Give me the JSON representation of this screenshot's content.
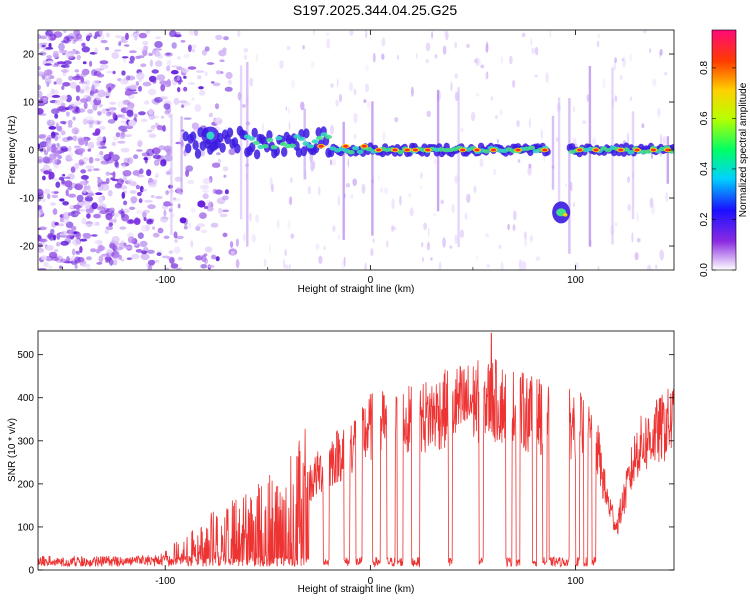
{
  "title": "S197.2025.344.04.25.G25",
  "colors": {
    "snr_line": "#ee3333",
    "axis": "#000000",
    "track_high": "#ff2a2a",
    "track_mid": "#33d6c4",
    "track_low": "#3a1ae0",
    "noise": "#9b5ce6"
  },
  "chart_data": [
    {
      "type": "heatmap",
      "title": "S197.2025.344.04.25.G25",
      "xlabel": "Height of straight line (km)",
      "ylabel": "Frequency (Hz)",
      "xlim": [
        -162,
        148
      ],
      "ylim": [
        -25,
        25
      ],
      "xticks": [
        -100,
        0,
        100
      ],
      "yticks": [
        -20,
        -10,
        0,
        10,
        20
      ],
      "colorbar": {
        "label": "Normalized spectral amplitude",
        "range": [
          0.0,
          0.95
        ],
        "ticks": [
          0.0,
          0.2,
          0.4,
          0.6,
          0.8
        ]
      },
      "features": [
        {
          "name": "main-track",
          "x_start": -70,
          "x_end": 148,
          "freq": 0
        },
        {
          "name": "secondary-blob",
          "x": 93,
          "freq": -13
        },
        {
          "name": "left-blob",
          "x": -78,
          "freq": 3
        }
      ]
    },
    {
      "type": "line",
      "title": "",
      "xlabel": "Height of straight line (km)",
      "ylabel": "SNR (10 * v/v)",
      "xlim": [
        -162,
        148
      ],
      "ylim": [
        0,
        555
      ],
      "xticks": [
        -100,
        0,
        100
      ],
      "yticks": [
        0,
        100,
        200,
        300,
        400,
        500
      ],
      "series": [
        {
          "name": "SNR",
          "envelope_x": [
            -162,
            -120,
            -100,
            -90,
            -80,
            -70,
            -60,
            -50,
            -40,
            -30,
            -20,
            -10,
            0,
            10,
            20,
            30,
            40,
            50,
            60,
            70,
            80,
            90,
            100,
            110,
            115,
            120,
            130,
            140,
            148
          ],
          "envelope_y": [
            18,
            20,
            30,
            45,
            75,
            95,
            110,
            135,
            165,
            200,
            250,
            290,
            330,
            340,
            345,
            360,
            380,
            390,
            395,
            375,
            360,
            345,
            340,
            300,
            170,
            100,
            280,
            320,
            350
          ],
          "peak": {
            "x": 59,
            "y": 550
          }
        }
      ]
    }
  ]
}
